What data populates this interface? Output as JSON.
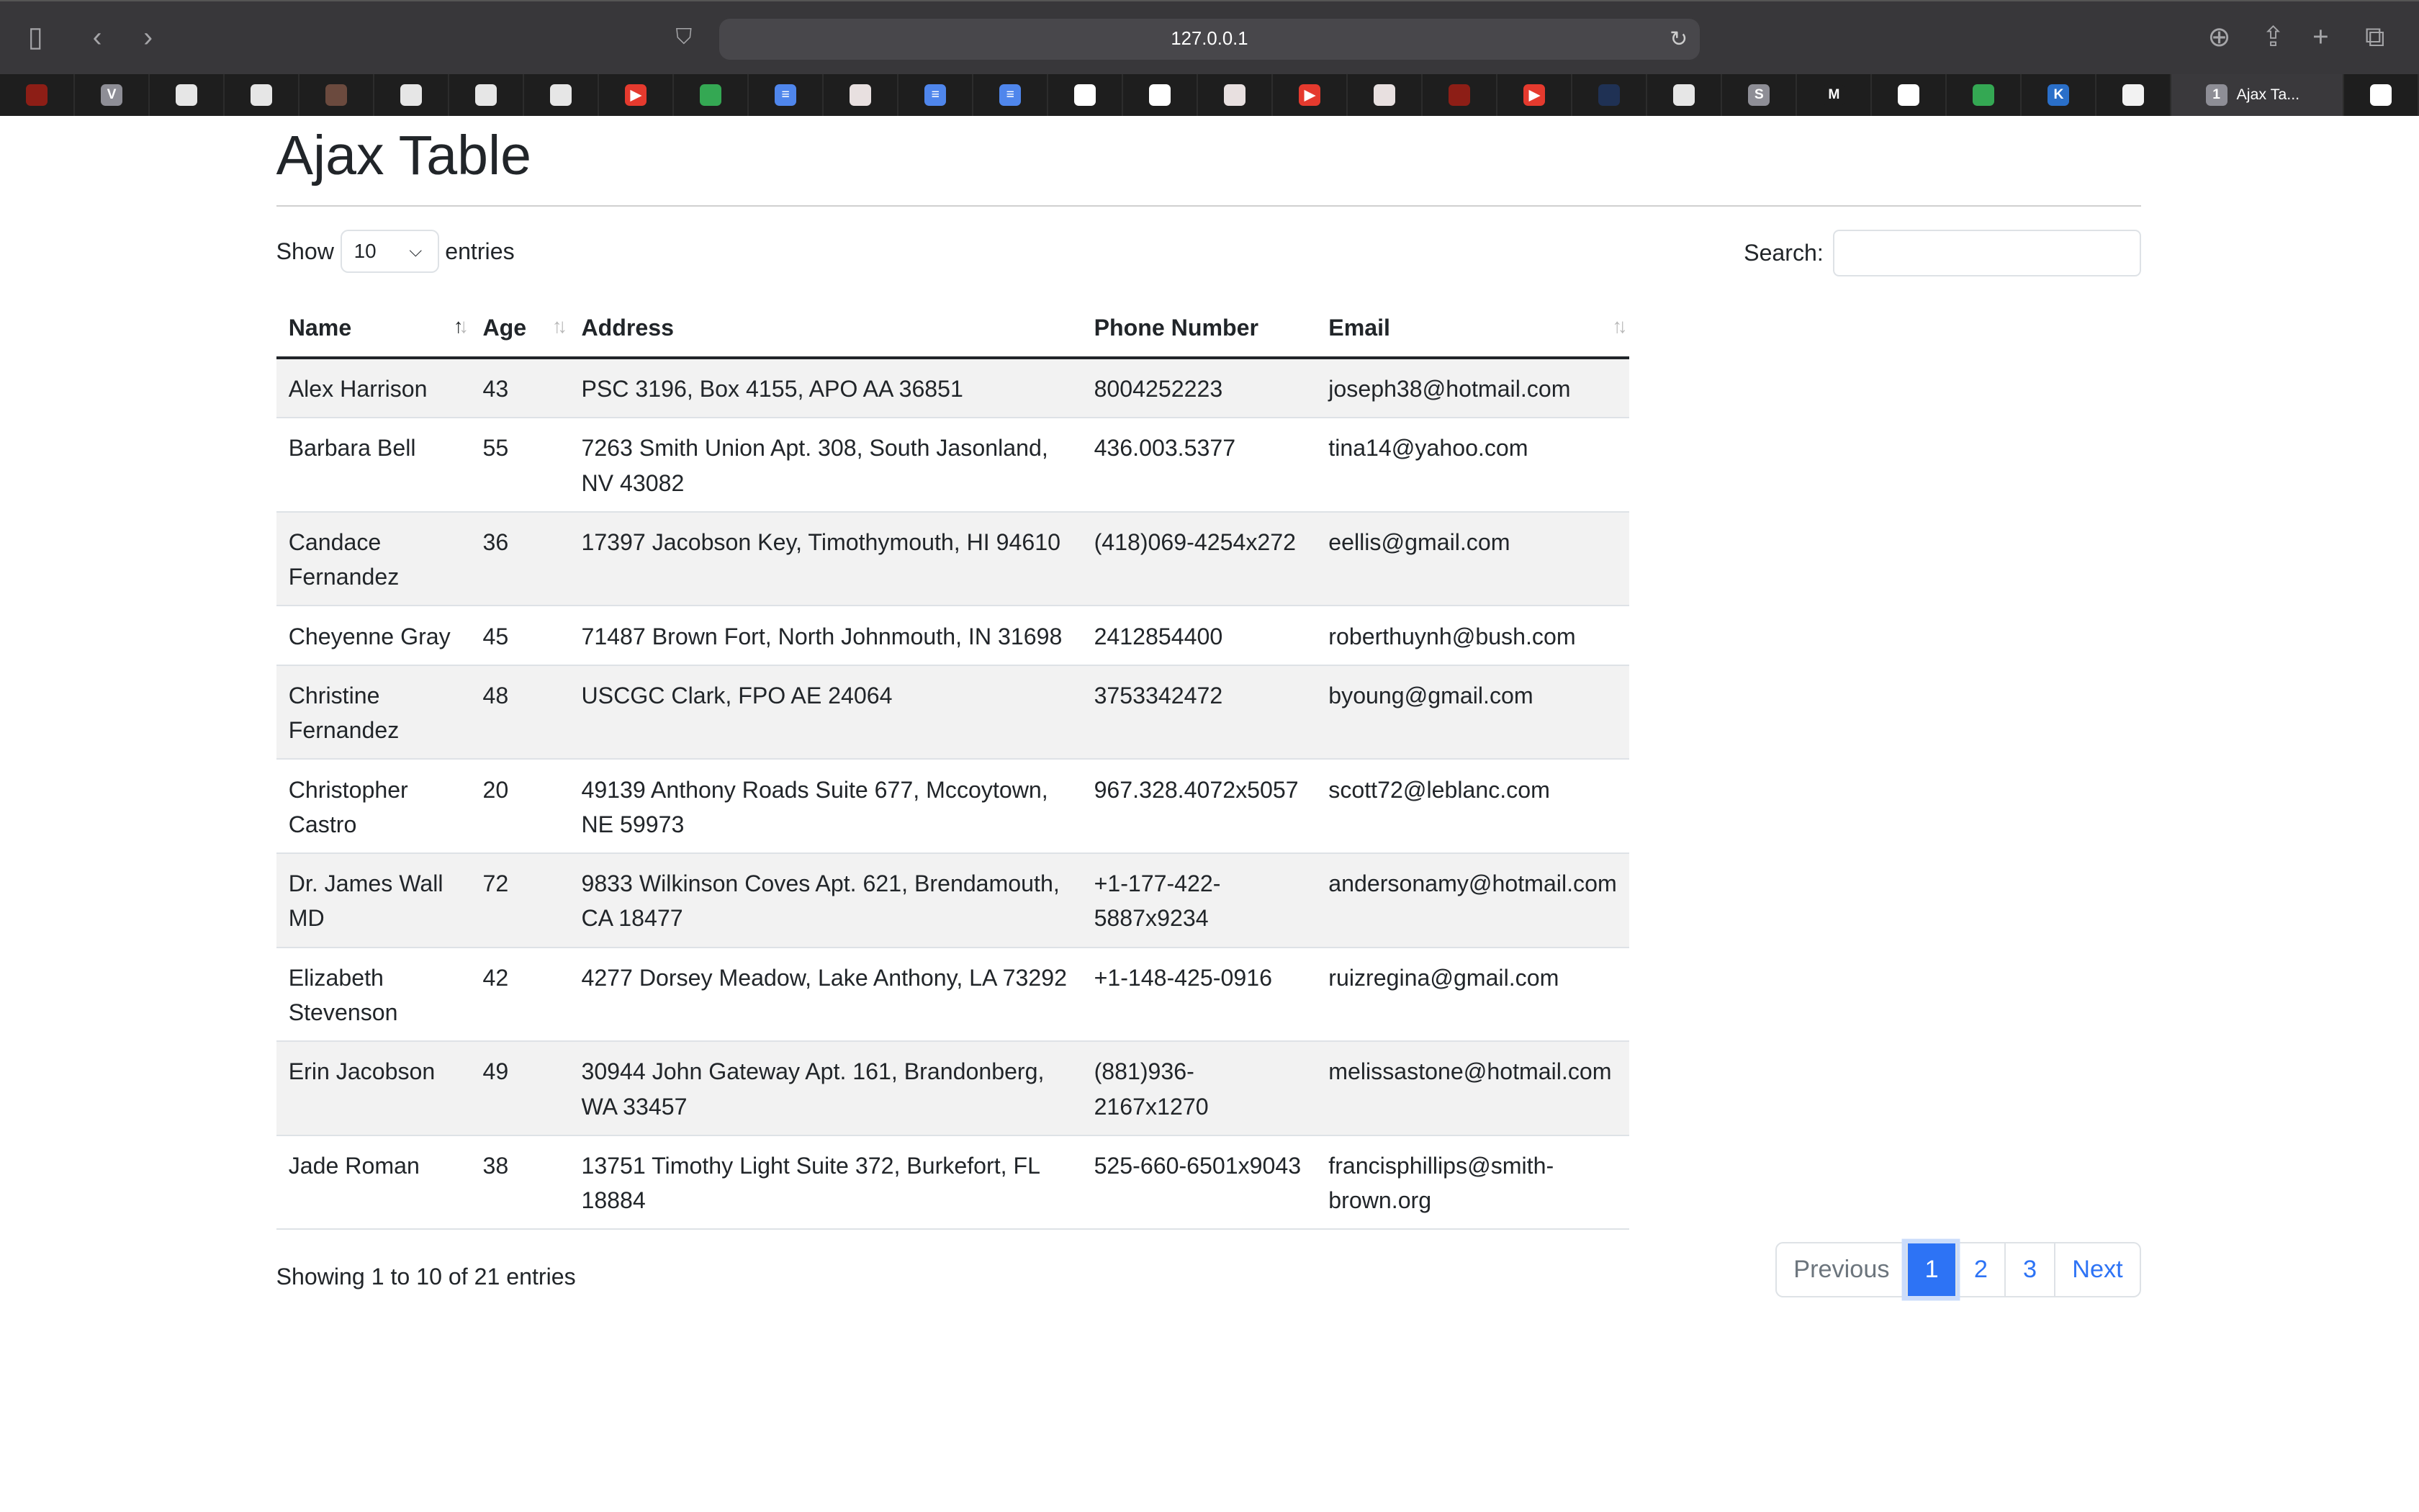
{
  "browser": {
    "url": "127.0.0.1",
    "tabs": [
      {
        "icon": "sjsu-icon",
        "color": "#8d1e16",
        "letter": ""
      },
      {
        "icon": "v-icon",
        "color": "#8e8e96",
        "letter": "V"
      },
      {
        "icon": "openai-icon",
        "color": "#e6e6e6",
        "letter": ""
      },
      {
        "icon": "openai-icon",
        "color": "#e6e6e6",
        "letter": ""
      },
      {
        "icon": "photo-icon",
        "color": "#6b4a3e",
        "letter": ""
      },
      {
        "icon": "phone-icon",
        "color": "#e6e6e6",
        "letter": ""
      },
      {
        "icon": "github-icon",
        "color": "#e6e6e6",
        "letter": ""
      },
      {
        "icon": "github-icon",
        "color": "#e6e6e6",
        "letter": ""
      },
      {
        "icon": "youtube-icon",
        "color": "#e53a2e",
        "letter": "▶"
      },
      {
        "icon": "drive-icon",
        "color": "#34a853",
        "letter": ""
      },
      {
        "icon": "docs-icon",
        "color": "#4f86ec",
        "letter": "≡"
      },
      {
        "icon": "pdf-icon",
        "color": "#e8e0e0",
        "letter": ""
      },
      {
        "icon": "docs-icon",
        "color": "#4f86ec",
        "letter": "≡"
      },
      {
        "icon": "docs-icon",
        "color": "#4f86ec",
        "letter": "≡"
      },
      {
        "icon": "sba-icon",
        "color": "#ffffff",
        "letter": ""
      },
      {
        "icon": "google-icon",
        "color": "#ffffff",
        "letter": ""
      },
      {
        "icon": "pdf-icon",
        "color": "#e8e0e0",
        "letter": ""
      },
      {
        "icon": "youtube-icon",
        "color": "#e53a2e",
        "letter": "▶"
      },
      {
        "icon": "pdf-icon",
        "color": "#e8e0e0",
        "letter": ""
      },
      {
        "icon": "sjsu-icon",
        "color": "#8d1e16",
        "letter": ""
      },
      {
        "icon": "youtube-icon",
        "color": "#e53a2e",
        "letter": "▶"
      },
      {
        "icon": "sba-icon",
        "color": "#1f3154",
        "letter": ""
      },
      {
        "icon": "github-icon",
        "color": "#e6e6e6",
        "letter": ""
      },
      {
        "icon": "s-icon",
        "color": "#8e8e96",
        "letter": "S"
      },
      {
        "icon": "gmail-icon",
        "color": "#1e1e1e",
        "letter": "M"
      },
      {
        "icon": "google-icon",
        "color": "#ffffff",
        "letter": ""
      },
      {
        "icon": "drive-icon",
        "color": "#34a853",
        "letter": ""
      },
      {
        "icon": "k-icon",
        "color": "#2a6fc9",
        "letter": "K"
      },
      {
        "icon": "hexagon-icon",
        "color": "#f2f2f2",
        "letter": ""
      }
    ],
    "active_tab": {
      "badge": "1",
      "title": "Ajax Ta..."
    }
  },
  "page": {
    "title": "Ajax Table",
    "show_label": "Show",
    "entries_label": "entries",
    "page_length": "10",
    "search_label": "Search:",
    "search_value": "",
    "columns": [
      "Name",
      "Age",
      "Address",
      "Phone Number",
      "Email"
    ],
    "rows": [
      [
        "Alex Harrison",
        "43",
        "PSC 3196, Box 4155, APO AA 36851",
        "8004252223",
        "joseph38@hotmail.com"
      ],
      [
        "Barbara Bell",
        "55",
        "7263 Smith Union Apt. 308, South Jasonland, NV 43082",
        "436.003.5377",
        "tina14@yahoo.com"
      ],
      [
        "Candace Fernandez",
        "36",
        "17397 Jacobson Key, Timothymouth, HI 94610",
        "(418)069-4254x272",
        "eellis@gmail.com"
      ],
      [
        "Cheyenne Gray",
        "45",
        "71487 Brown Fort, North Johnmouth, IN 31698",
        "2412854400",
        "roberthuynh@bush.com"
      ],
      [
        "Christine Fernandez",
        "48",
        "USCGC Clark, FPO AE 24064",
        "3753342472",
        "byoung@gmail.com"
      ],
      [
        "Christopher Castro",
        "20",
        "49139 Anthony Roads Suite 677, Mccoytown, NE 59973",
        "967.328.4072x5057",
        "scott72@leblanc.com"
      ],
      [
        "Dr. James Wall MD",
        "72",
        "9833 Wilkinson Coves Apt. 621, Brendamouth, CA 18477",
        "+1-177-422-5887x9234",
        "andersonamy@hotmail.com"
      ],
      [
        "Elizabeth Stevenson",
        "42",
        "4277 Dorsey Meadow, Lake Anthony, LA 73292",
        "+1-148-425-0916",
        "ruizregina@gmail.com"
      ],
      [
        "Erin Jacobson",
        "49",
        "30944 John Gateway Apt. 161, Brandonberg, WA 33457",
        "(881)936-2167x1270",
        "melissastone@hotmail.com"
      ],
      [
        "Jade Roman",
        "38",
        "13751 Timothy Light Suite 372, Burkefort, FL 18884",
        "525-660-6501x9043",
        "francisphillips@smith-brown.org"
      ]
    ],
    "info": "Showing 1 to 10 of 21 entries",
    "pagination": {
      "previous": "Previous",
      "pages": [
        "1",
        "2",
        "3"
      ],
      "current": "1",
      "next": "Next"
    },
    "accent_color": "#2d73f5"
  }
}
